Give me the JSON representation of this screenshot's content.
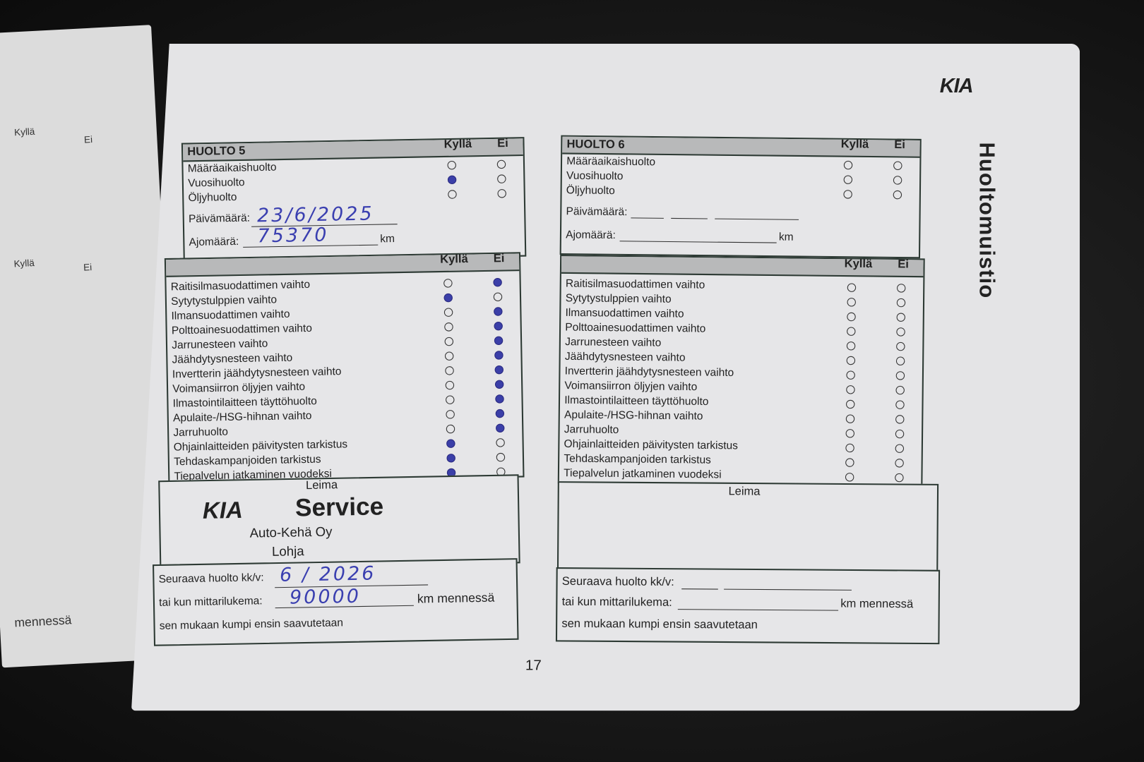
{
  "brand_logo": "KIA",
  "vertical_title": "Huoltomuistio",
  "page_number": "17",
  "left_page": {
    "col_yes": "Kyllä",
    "col_no": "Ei",
    "footer_fragment": "mennessä"
  },
  "service5": {
    "title": "HUOLTO 5",
    "col_yes": "Kyllä",
    "col_no": "Ei",
    "types": [
      {
        "label": "Määräaikaishuolto",
        "value": "none"
      },
      {
        "label": "Vuosihuolto",
        "value": "yes"
      },
      {
        "label": "Öljyhuolto",
        "value": "none"
      }
    ],
    "date_label": "Päivämäärä:",
    "date": {
      "day": "23",
      "month": "6",
      "year": "2025"
    },
    "mileage_label": "Ajomäärä:",
    "mileage": "75370",
    "km": "km",
    "tasks": [
      {
        "label": "Raitisilmasuodattimen vaihto",
        "value": "no"
      },
      {
        "label": "Sytytystulppien vaihto",
        "value": "yes"
      },
      {
        "label": "Ilmansuodattimen vaihto",
        "value": "no"
      },
      {
        "label": "Polttoainesuodattimen vaihto",
        "value": "no"
      },
      {
        "label": "Jarrunesteen vaihto",
        "value": "no"
      },
      {
        "label": "Jäähdytysnesteen vaihto",
        "value": "no"
      },
      {
        "label": "Invertterin jäähdytysnesteen vaihto",
        "value": "no"
      },
      {
        "label": "Voimansiirron öljyjen vaihto",
        "value": "no"
      },
      {
        "label": "Ilmastointilaitteen täyttöhuolto",
        "value": "no"
      },
      {
        "label": "Apulaite-/HSG-hihnan vaihto",
        "value": "no"
      },
      {
        "label": "Jarruhuolto",
        "value": "no"
      },
      {
        "label": "Ohjainlaitteiden päivitysten tarkistus",
        "value": "yes"
      },
      {
        "label": "Tehdaskampanjoiden tarkistus",
        "value": "yes"
      },
      {
        "label": "Tiepalvelun jatkaminen vuodeksi",
        "value": "yes"
      }
    ],
    "stamp_label": "Leima",
    "stamp": {
      "brand": "KIA",
      "service": "Service",
      "company": "Auto-Kehä Oy",
      "city": "Lohja"
    },
    "next_label": "Seuraava huolto kk/v:",
    "next_date": "6 / 2026",
    "or_label": "tai kun mittarilukema:",
    "next_km": "90000",
    "km_suffix": "km mennessä",
    "whichever": "sen mukaan kumpi ensin saavutetaan"
  },
  "service6": {
    "title": "HUOLTO 6",
    "col_yes": "Kyllä",
    "col_no": "Ei",
    "types": [
      {
        "label": "Määräaikaishuolto",
        "value": "none"
      },
      {
        "label": "Vuosihuolto",
        "value": "none"
      },
      {
        "label": "Öljyhuolto",
        "value": "none"
      }
    ],
    "date_label": "Päivämäärä:",
    "mileage_label": "Ajomäärä:",
    "km": "km",
    "tasks": [
      {
        "label": "Raitisilmasuodattimen vaihto",
        "value": "none"
      },
      {
        "label": "Sytytystulppien vaihto",
        "value": "none"
      },
      {
        "label": "Ilmansuodattimen vaihto",
        "value": "none"
      },
      {
        "label": "Polttoainesuodattimen vaihto",
        "value": "none"
      },
      {
        "label": "Jarrunesteen vaihto",
        "value": "none"
      },
      {
        "label": "Jäähdytysnesteen vaihto",
        "value": "none"
      },
      {
        "label": "Invertterin jäähdytysnesteen vaihto",
        "value": "none"
      },
      {
        "label": "Voimansiirron öljyjen vaihto",
        "value": "none"
      },
      {
        "label": "Ilmastointilaitteen täyttöhuolto",
        "value": "none"
      },
      {
        "label": "Apulaite-/HSG-hihnan vaihto",
        "value": "none"
      },
      {
        "label": "Jarruhuolto",
        "value": "none"
      },
      {
        "label": "Ohjainlaitteiden päivitysten tarkistus",
        "value": "none"
      },
      {
        "label": "Tehdaskampanjoiden tarkistus",
        "value": "none"
      },
      {
        "label": "Tiepalvelun jatkaminen vuodeksi",
        "value": "none"
      }
    ],
    "stamp_label": "Leima",
    "next_label": "Seuraava huolto kk/v:",
    "or_label": "tai kun mittarilukema:",
    "km_suffix": "km mennessä",
    "whichever": "sen mukaan kumpi ensin saavutetaan"
  },
  "colors": {
    "ink": "#3a3fb0",
    "paper": "#e4e4e6",
    "border": "#2d3a34"
  }
}
